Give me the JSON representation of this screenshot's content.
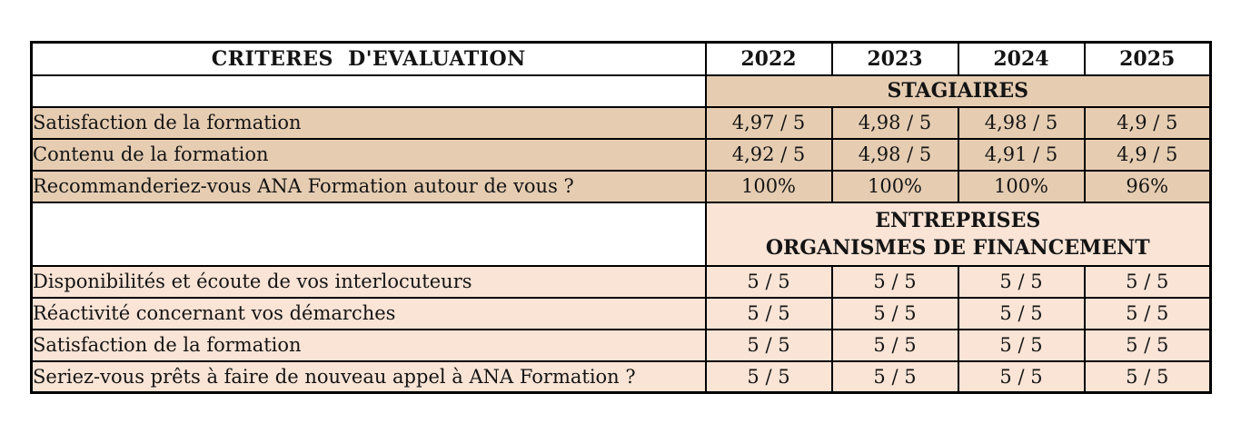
{
  "chart_data": {
    "type": "table",
    "title": "CRITERES  D'EVALUATION",
    "columns": [
      "2022",
      "2023",
      "2024",
      "2025"
    ],
    "sections": [
      {
        "name": "STAGIAIRES",
        "name_lines": [
          "STAGIAIRES"
        ],
        "rows": [
          {
            "label": "Satisfaction de la formation",
            "values": [
              "4,97 / 5",
              "4,98 / 5",
              "4,98 / 5",
              "4,9 / 5"
            ]
          },
          {
            "label": "Contenu de la formation",
            "values": [
              "4,92 / 5",
              "4,98 / 5",
              "4,91 / 5",
              "4,9 / 5"
            ]
          },
          {
            "label": "Recommanderiez-vous ANA Formation autour de vous ?",
            "values": [
              "100%",
              "100%",
              "100%",
              "96%"
            ]
          }
        ]
      },
      {
        "name": "ENTREPRISES ORGANISMES DE FINANCEMENT",
        "name_lines": [
          "ENTREPRISES",
          "ORGANISMES DE FINANCEMENT"
        ],
        "rows": [
          {
            "label": "Disponibilités et écoute de vos interlocuteurs",
            "values": [
              "5 / 5",
              "5 / 5",
              "5 / 5",
              "5 / 5"
            ]
          },
          {
            "label": "Réactivité concernant vos démarches",
            "values": [
              "5 / 5",
              "5 / 5",
              "5 / 5",
              "5 / 5"
            ]
          },
          {
            "label": "Satisfaction de la formation",
            "values": [
              "5 / 5",
              "5 / 5",
              "5 / 5",
              "5 / 5"
            ]
          },
          {
            "label": "Seriez-vous prêts à faire de nouveau appel à ANA Formation ?",
            "values": [
              "5 / 5",
              "5 / 5",
              "5 / 5",
              "5 / 5"
            ]
          }
        ]
      }
    ],
    "layout_hints": {
      "grid": "full black borders",
      "section_headers_span_year_columns": true
    },
    "colors": {
      "section1_bg": "#e6cdb2",
      "section2_bg": "#f9e4d6",
      "header_bg": "#ffffff",
      "border": "#000000",
      "text": "#141414"
    }
  }
}
